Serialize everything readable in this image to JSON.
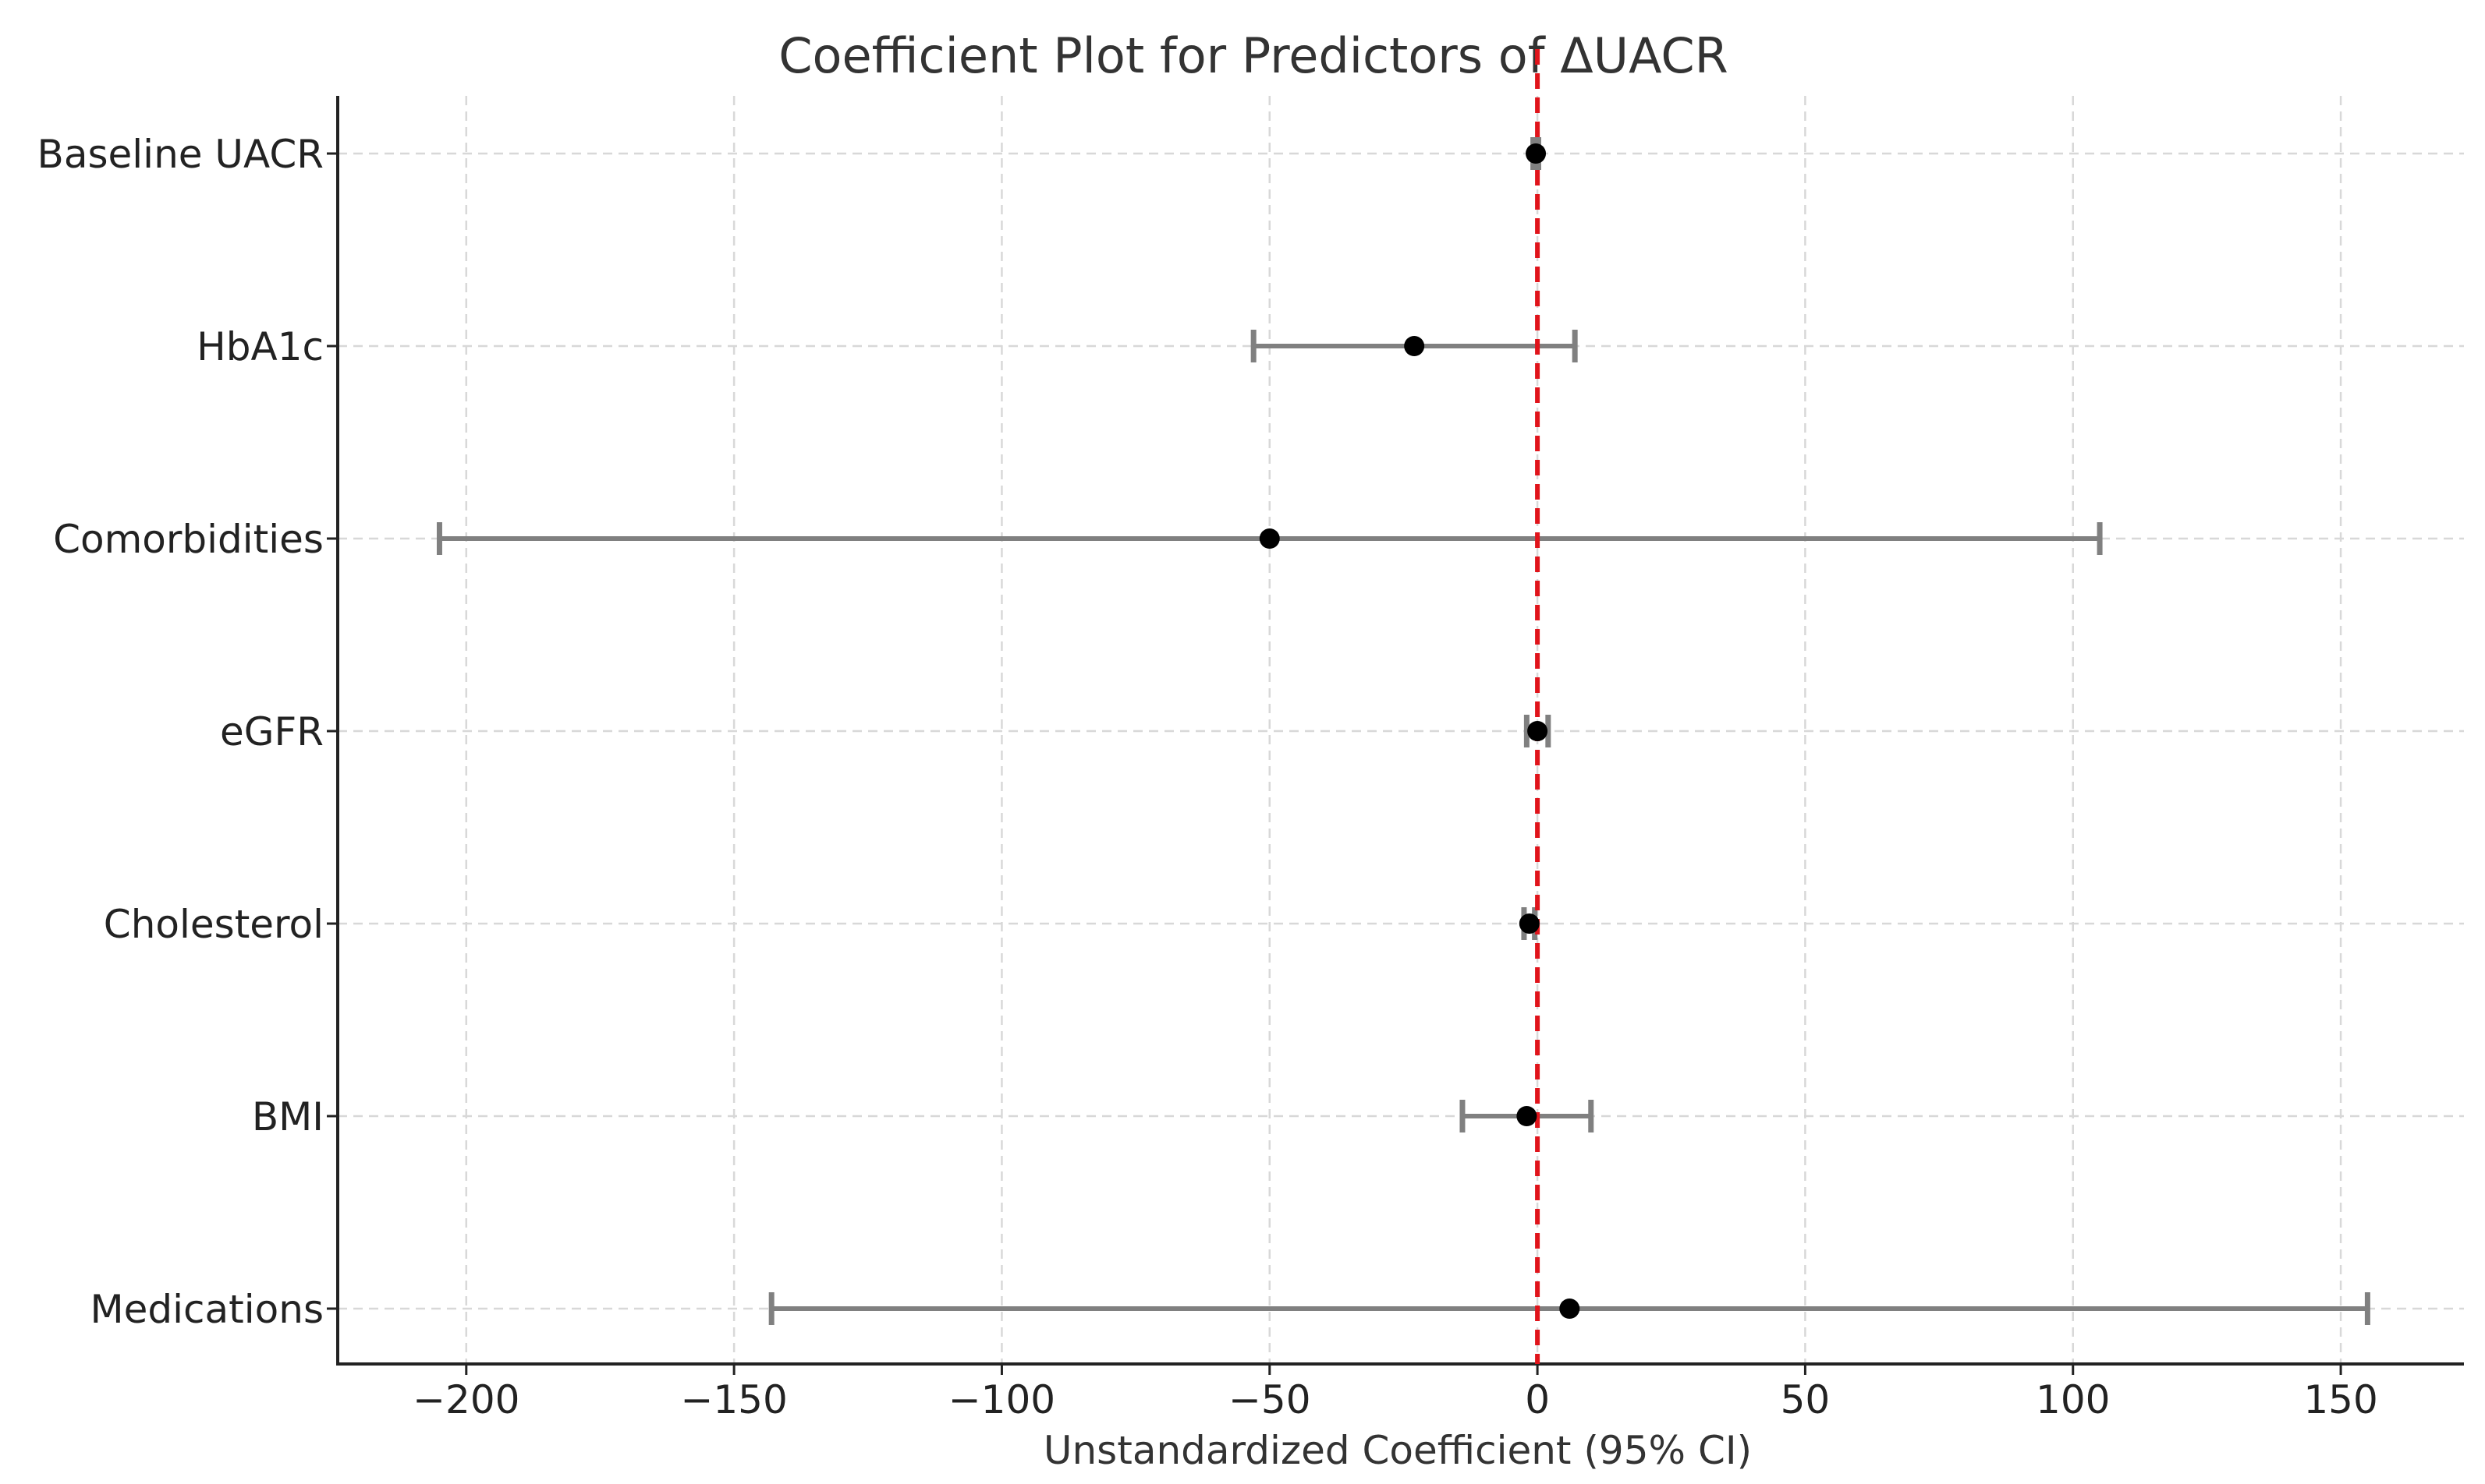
{
  "chart_data": {
    "type": "scatter",
    "title": "Coefficient Plot for Predictors of ΔUACR",
    "xlabel": "Unstandardized Coefficient (95% CI)",
    "ylabel": "",
    "xlim": [
      -224,
      173
    ],
    "xticks": [
      -200,
      -150,
      -100,
      -50,
      0,
      50,
      100,
      150
    ],
    "xtick_labels": [
      "−200",
      "−150",
      "−100",
      "−50",
      "0",
      "50",
      "100",
      "150"
    ],
    "grid": true,
    "reference_line": {
      "x": 0,
      "color": "#e0141b",
      "style": "dashed"
    },
    "colors": {
      "point": "#000000",
      "ci": "#808080"
    },
    "categories": [
      "Baseline UACR",
      "HbA1c",
      "Comorbidities",
      "eGFR",
      "Cholesterol",
      "BMI",
      "Medications"
    ],
    "points": [
      {
        "label": "Baseline UACR",
        "coef": -0.3,
        "ci_low": -0.8,
        "ci_high": 0.2
      },
      {
        "label": "HbA1c",
        "coef": -23,
        "ci_low": -53,
        "ci_high": 7
      },
      {
        "label": "Comorbidities",
        "coef": -50,
        "ci_low": -205,
        "ci_high": 105
      },
      {
        "label": "eGFR",
        "coef": 0,
        "ci_low": -2,
        "ci_high": 2
      },
      {
        "label": "Cholesterol",
        "coef": -1.5,
        "ci_low": -2.5,
        "ci_high": -0.5
      },
      {
        "label": "BMI",
        "coef": -2,
        "ci_low": -14,
        "ci_high": 10
      },
      {
        "label": "Medications",
        "coef": 6,
        "ci_low": -143,
        "ci_high": 155
      }
    ]
  }
}
